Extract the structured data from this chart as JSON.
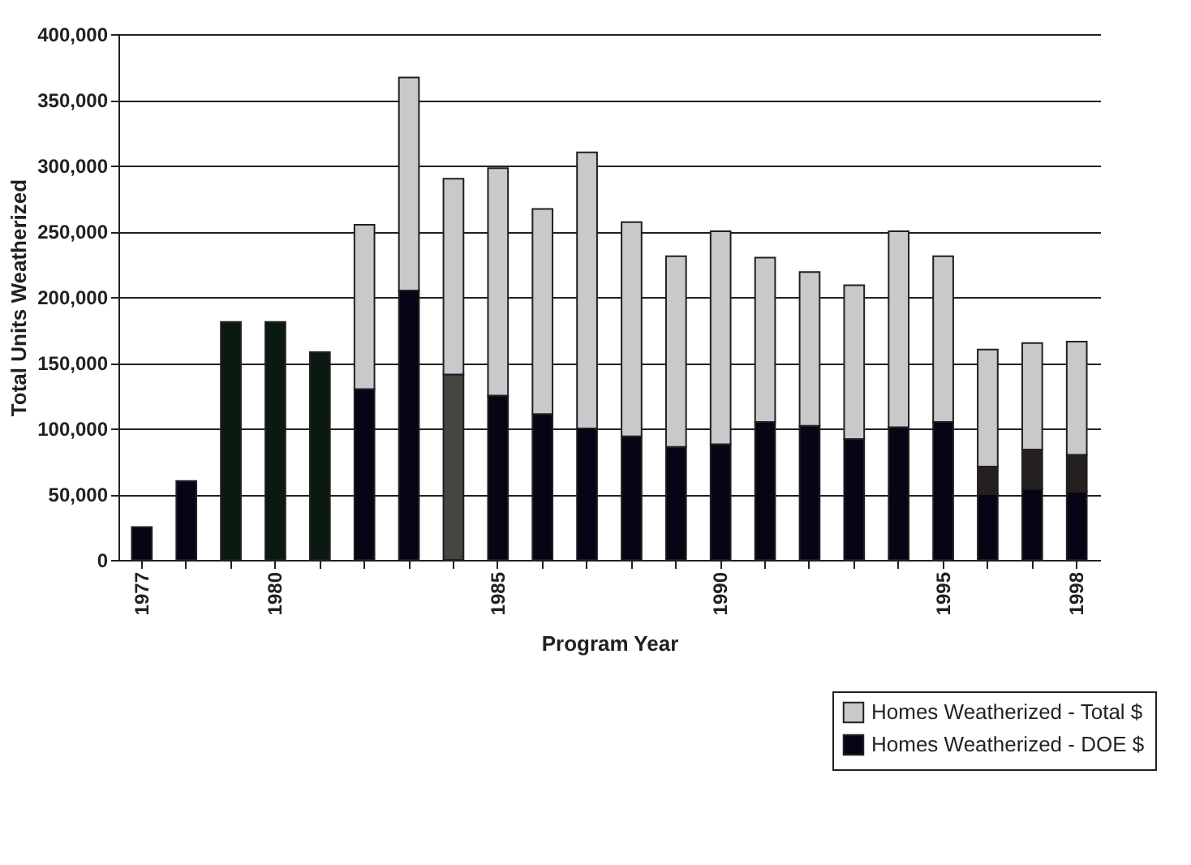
{
  "chart_data": {
    "type": "bar",
    "stacked": true,
    "xlabel": "Program Year",
    "ylabel": "Total Units Weatherized",
    "categories": [
      "1977",
      null,
      null,
      "1980",
      null,
      null,
      null,
      null,
      "1985",
      null,
      null,
      null,
      null,
      "1990",
      null,
      null,
      null,
      null,
      "1995",
      null,
      null,
      "1998"
    ],
    "series": [
      {
        "name": "Homes Weatherized - DOE $",
        "color": "#050515",
        "colors": [
          "#050515",
          "#050515",
          "#0b1a10",
          "#0b1a10",
          "#0b1a10",
          "#050515",
          "#050515",
          "#45463f",
          "#050515",
          "#050515",
          "#050515",
          "#050515",
          "#050515",
          "#050515",
          "#050515",
          "#050515",
          "#050515",
          "#050515",
          "#050515",
          "#050515",
          "#050515",
          "#050515"
        ],
        "values": [
          25000,
          60000,
          181000,
          181000,
          158000,
          130000,
          205000,
          141000,
          125000,
          111000,
          100000,
          94000,
          86000,
          88000,
          105000,
          102000,
          92000,
          101000,
          105000,
          50000,
          54000,
          52000
        ]
      },
      {
        "color": "#252020",
        "values": [
          null,
          null,
          null,
          null,
          null,
          null,
          null,
          null,
          null,
          null,
          null,
          null,
          null,
          null,
          null,
          null,
          null,
          null,
          null,
          21000,
          30000,
          28000
        ]
      },
      {
        "name": "Homes Weatherized - Total $",
        "color": "#c8c9cb",
        "values": [
          null,
          null,
          null,
          null,
          null,
          125000,
          162000,
          149000,
          173000,
          156000,
          210000,
          163000,
          145000,
          162000,
          125000,
          117000,
          117000,
          149000,
          126000,
          89000,
          81000,
          86000
        ]
      }
    ],
    "ylim": [
      0,
      400000
    ],
    "yticks": [
      {
        "value": 0,
        "label": "0"
      },
      {
        "value": 50000,
        "label": "50,000"
      },
      {
        "value": 100000,
        "label": "100,000"
      },
      {
        "value": 150000,
        "label": "150,000"
      },
      {
        "value": 200000,
        "label": "200,000"
      },
      {
        "value": 250000,
        "label": "250,000"
      },
      {
        "value": 300000,
        "label": "300,000"
      },
      {
        "value": 350000,
        "label": "350,000"
      },
      {
        "value": 400000,
        "label": "400,000"
      }
    ],
    "grid": "y",
    "legend": "bottom right"
  }
}
